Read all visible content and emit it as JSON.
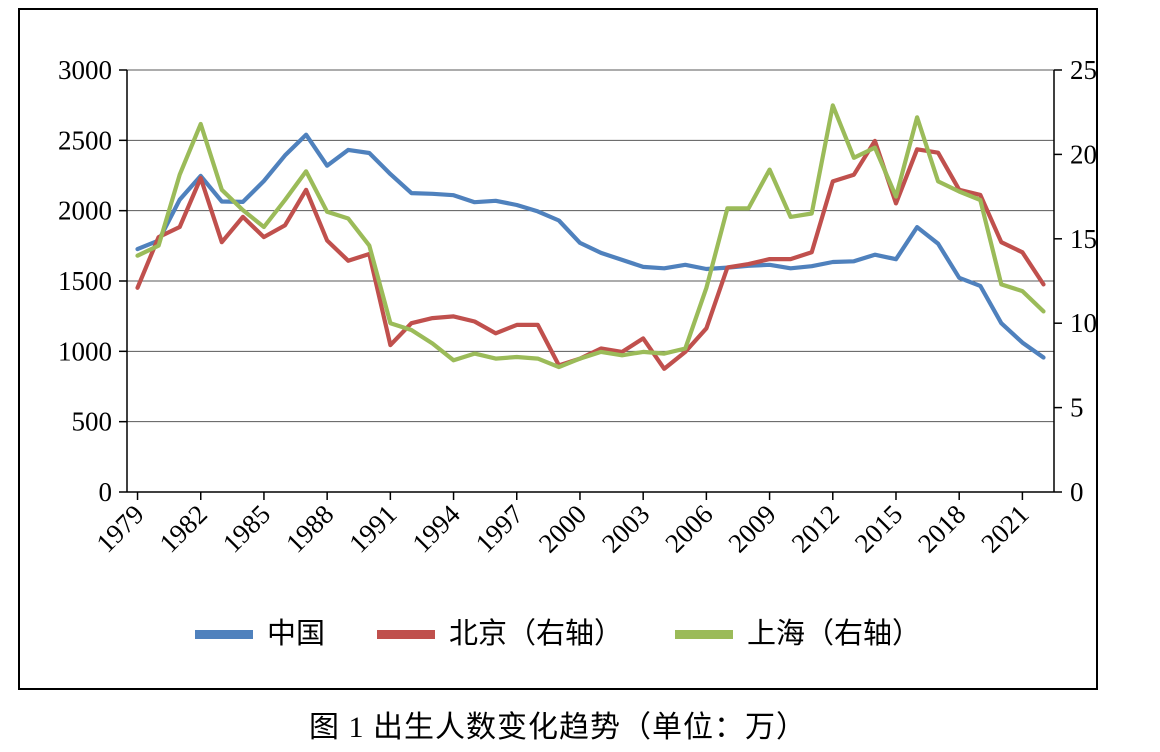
{
  "caption": "图 1  出生人数变化趋势（单位：万）",
  "colors": {
    "china_line": "#4F81BD",
    "beijing_line": "#C0504D",
    "shanghai_line": "#9BBB59",
    "grid": "#595959",
    "axis": "#000000",
    "background": "#FFFFFF"
  },
  "chart_data": {
    "type": "line",
    "title": "图 1 出生人数变化趋势（单位：万）",
    "grid": true,
    "legend_position": "bottom",
    "x": [
      1979,
      1980,
      1981,
      1982,
      1983,
      1984,
      1985,
      1986,
      1987,
      1988,
      1989,
      1990,
      1991,
      1992,
      1993,
      1994,
      1995,
      1996,
      1997,
      1998,
      1999,
      2000,
      2001,
      2002,
      2003,
      2004,
      2005,
      2006,
      2007,
      2008,
      2009,
      2010,
      2011,
      2012,
      2013,
      2014,
      2015,
      2016,
      2017,
      2018,
      2019,
      2020,
      2021,
      2022
    ],
    "x_tick_labels": [
      "1979",
      "1982",
      "1985",
      "1988",
      "1991",
      "1994",
      "1997",
      "2000",
      "2003",
      "2006",
      "2009",
      "2012",
      "2015",
      "2018",
      "2021"
    ],
    "left_axis": {
      "range": [
        0,
        3000
      ],
      "ticks": [
        0,
        500,
        1000,
        1500,
        2000,
        2500,
        3000
      ]
    },
    "right_axis": {
      "range": [
        0,
        25
      ],
      "ticks": [
        0,
        5,
        10,
        15,
        20,
        25
      ]
    },
    "series": [
      {
        "name": "中国",
        "axis": "left",
        "color": "#4F81BD",
        "values": [
          1727,
          1787,
          2078,
          2247,
          2065,
          2062,
          2211,
          2393,
          2540,
          2320,
          2432,
          2410,
          2260,
          2125,
          2120,
          2110,
          2060,
          2070,
          2040,
          1995,
          1930,
          1771,
          1700,
          1650,
          1600,
          1590,
          1615,
          1585,
          1595,
          1608,
          1615,
          1590,
          1605,
          1635,
          1640,
          1687,
          1655,
          1883,
          1765,
          1523,
          1465,
          1200,
          1062,
          956
        ]
      },
      {
        "name": "北京（右轴）",
        "axis": "right",
        "color": "#C0504D",
        "values": [
          12.1,
          15.1,
          15.7,
          18.6,
          14.8,
          16.3,
          15.1,
          15.8,
          17.9,
          14.9,
          13.7,
          14.1,
          8.7,
          10.0,
          10.3,
          10.4,
          10.1,
          9.4,
          9.9,
          9.9,
          7.5,
          7.9,
          8.5,
          8.3,
          9.1,
          7.3,
          8.3,
          9.7,
          13.3,
          13.5,
          13.8,
          13.8,
          14.2,
          18.4,
          18.8,
          20.8,
          17.1,
          20.3,
          20.1,
          17.9,
          17.6,
          14.8,
          14.2,
          12.3
        ]
      },
      {
        "name": "上海（右轴）",
        "axis": "right",
        "color": "#9BBB59",
        "values": [
          14.0,
          14.6,
          18.8,
          21.8,
          17.9,
          16.7,
          15.7,
          17.3,
          19.0,
          16.6,
          16.2,
          14.6,
          10.0,
          9.6,
          8.8,
          7.8,
          8.2,
          7.9,
          8.0,
          7.9,
          7.4,
          7.9,
          8.3,
          8.1,
          8.3,
          8.2,
          8.5,
          12.1,
          16.8,
          16.8,
          19.1,
          16.3,
          16.5,
          22.9,
          19.8,
          20.4,
          17.5,
          22.2,
          18.4,
          17.8,
          17.3,
          12.3,
          11.9,
          10.7
        ]
      }
    ]
  }
}
